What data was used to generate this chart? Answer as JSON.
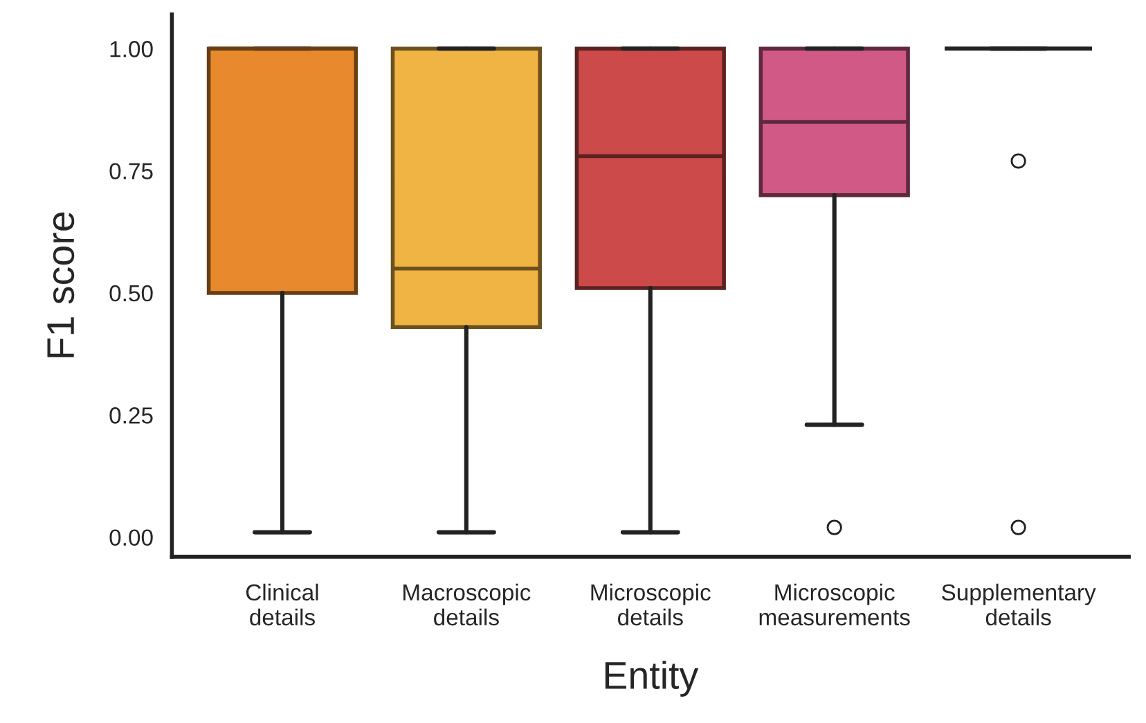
{
  "chart_data": {
    "type": "box",
    "xlabel": "Entity",
    "ylabel": "F1 score",
    "categories": [
      "Clinical\ndetails",
      "Macroscopic\ndetails",
      "Microscopic\ndetails",
      "Microscopic\nmeasurements",
      "Supplementary\ndetails"
    ],
    "boxes": [
      {
        "low": 0.01,
        "q1": 0.5,
        "median": 1.0,
        "q3": 1.0,
        "high": 1.0
      },
      {
        "low": 0.01,
        "q1": 0.43,
        "median": 0.55,
        "q3": 1.0,
        "high": 1.0
      },
      {
        "low": 0.01,
        "q1": 0.51,
        "median": 0.78,
        "q3": 1.0,
        "high": 1.0
      },
      {
        "low": 0.23,
        "q1": 0.7,
        "median": 0.85,
        "q3": 1.0,
        "high": 1.0,
        "outliers": [
          0.02
        ]
      },
      {
        "low": 1.0,
        "q1": 1.0,
        "median": 1.0,
        "q3": 1.0,
        "high": 1.0,
        "outliers": [
          0.77,
          0.02
        ]
      }
    ],
    "colors": [
      "#e8892e",
      "#f0b444",
      "#cc4a4a",
      "#d05a85",
      "#222222"
    ],
    "ylim": [
      -0.04,
      1.07
    ],
    "yticks": [
      {
        "value": 0,
        "label": "0.00"
      },
      {
        "value": 0.25,
        "label": "0.25"
      },
      {
        "value": 0.5,
        "label": "0.50"
      },
      {
        "value": 0.75,
        "label": "0.75"
      },
      {
        "value": 1,
        "label": "1.00"
      }
    ],
    "grid": false,
    "legend": false
  }
}
